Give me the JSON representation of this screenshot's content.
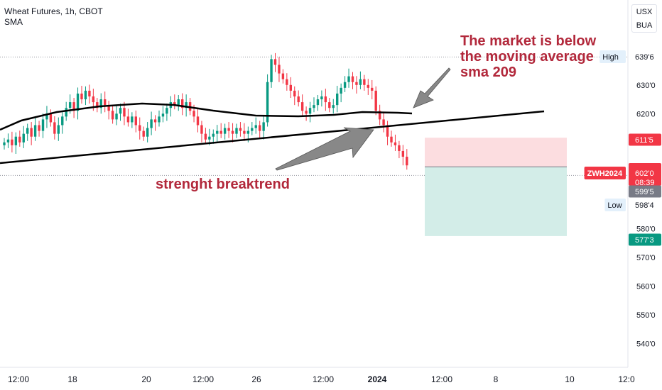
{
  "header": {
    "title": "Wheat Futures, 1h, CBOT",
    "indicator": "SMA"
  },
  "currency_buttons": [
    "USX",
    "BUA"
  ],
  "annotations": {
    "market_note": [
      "The market is below",
      "the moving average",
      "sma 209"
    ],
    "breakout_note": "strenght breaktrend"
  },
  "colors": {
    "up": "#089981",
    "down": "#f23645",
    "annotation": "#b2283b",
    "stop_zone": "#fcdde0",
    "target_zone": "#d3ede8",
    "sma": "#000000",
    "trendline": "#000000",
    "arrow": "#888888"
  },
  "chart_data": {
    "type": "candlestick",
    "symbol": "ZWH2024",
    "y_ticks": [
      "639'6",
      "630'0",
      "620'0",
      "580'0",
      "570'0",
      "560'0",
      "550'0",
      "540'0"
    ],
    "x_ticks": [
      "12:00",
      "18",
      "20",
      "12:00",
      "26",
      "12:00",
      "2024",
      "12:00",
      "8",
      "10",
      "12:0"
    ],
    "price_labels": [
      {
        "name": "high",
        "label": "High",
        "value": "639'6",
        "price": 639.75
      },
      {
        "name": "stop",
        "label": "",
        "value": "611'5",
        "price": 611.625
      },
      {
        "name": "last",
        "label": "ZWH2024",
        "value": "602'0",
        "extra": "08:39",
        "price": 602.0
      },
      {
        "name": "mid",
        "label": "",
        "value": "599'5",
        "price": 599.625
      },
      {
        "name": "low",
        "label": "Low",
        "value": "598'4",
        "price": 598.5
      },
      {
        "name": "target",
        "label": "",
        "value": "577'3",
        "price": 577.375
      }
    ],
    "trade_zone": {
      "entry": 601.5,
      "stop": 611.625,
      "target": 577.375
    },
    "sma": {
      "name": "SMA",
      "period": 209
    },
    "closes": [
      610,
      611,
      609,
      612,
      610,
      613,
      615,
      612,
      616,
      614,
      618,
      620,
      617,
      613,
      616,
      619,
      622,
      624,
      621,
      627,
      625,
      628,
      626,
      624,
      622,
      625,
      623,
      621,
      618,
      620,
      622,
      619,
      617,
      619,
      616,
      614,
      612,
      615,
      618,
      617,
      619,
      620,
      622,
      624,
      623,
      625,
      622,
      624,
      621,
      619,
      616,
      613,
      611,
      612,
      613,
      614,
      613,
      615,
      614,
      613,
      615,
      614,
      613,
      614,
      615,
      616,
      614,
      617,
      631,
      639,
      637,
      634,
      632,
      630,
      628,
      626,
      624,
      621,
      620,
      622,
      623,
      625,
      626,
      624,
      622,
      623,
      627,
      629,
      631,
      633,
      631,
      630,
      632,
      630,
      629,
      628,
      621,
      618,
      616,
      612,
      610,
      609,
      607,
      605,
      602
    ]
  }
}
